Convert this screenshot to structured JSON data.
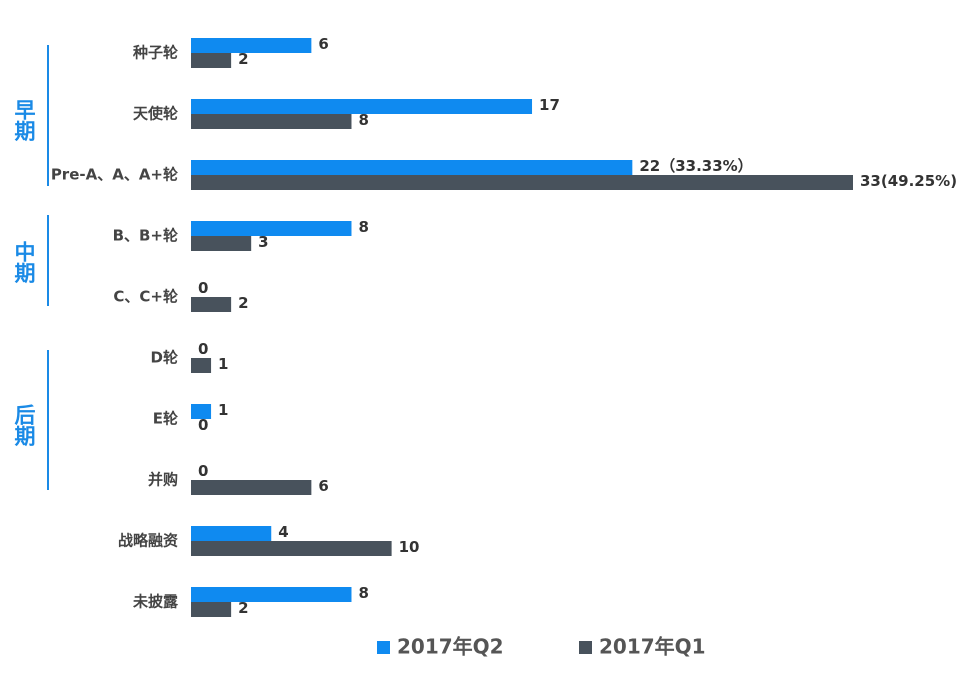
{
  "chart_data": {
    "type": "hbar",
    "categories": [
      "种子轮",
      "天使轮",
      "Pre-A、A、A+轮",
      "B、B+轮",
      "C、C+轮",
      "D轮",
      "E轮",
      "并购",
      "战略融资",
      "未披露"
    ],
    "groups": [
      "早期",
      "中期",
      "后期"
    ],
    "series": [
      {
        "name": "2017年Q2",
        "color": "#0f8af0",
        "values": [
          6,
          17,
          22,
          8,
          0,
          0,
          1,
          0,
          4,
          8
        ],
        "value_labels": [
          "6",
          "17",
          "22（33.33%）",
          "8",
          "0",
          "0",
          "1",
          "0",
          "4",
          "8"
        ]
      },
      {
        "name": "2017年Q1",
        "color": "#48525c",
        "values": [
          2,
          8,
          33,
          3,
          2,
          1,
          0,
          6,
          10,
          2
        ],
        "value_labels": [
          "2",
          "8",
          "33(49.25%)",
          "3",
          "2",
          "1",
          "0",
          "6",
          "10",
          "2"
        ]
      }
    ],
    "legend": "bottom"
  }
}
